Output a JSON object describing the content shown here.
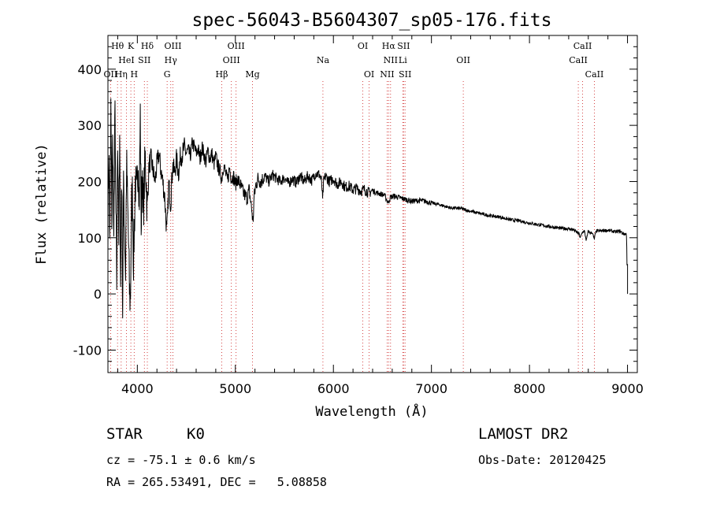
{
  "chart_data": {
    "type": "line",
    "title": "spec-56043-B5604307_sp05-176.fits",
    "xlabel": "Wavelength (Å)",
    "ylabel": "Flux (relative)",
    "xlim": [
      3700,
      9100
    ],
    "ylim": [
      -140,
      460
    ],
    "x_ticks": [
      "4000",
      "5000",
      "6000",
      "7000",
      "8000",
      "9000"
    ],
    "y_ticks": [
      "-100",
      "0",
      "100",
      "200",
      "300",
      "400"
    ],
    "grid": false,
    "series": [
      {
        "color": "#000000",
        "anchors": [
          [
            3700,
            130
          ],
          [
            3710,
            260
          ],
          [
            3720,
            80
          ],
          [
            3730,
            330
          ],
          [
            3740,
            120
          ],
          [
            3750,
            300
          ],
          [
            3760,
            60
          ],
          [
            3770,
            340
          ],
          [
            3780,
            150
          ],
          [
            3790,
            20
          ],
          [
            3800,
            300
          ],
          [
            3810,
            90
          ],
          [
            3820,
            260
          ],
          [
            3830,
            10
          ],
          [
            3840,
            240
          ],
          [
            3850,
            -30
          ],
          [
            3860,
            200
          ],
          [
            3870,
            110
          ],
          [
            3880,
            40
          ],
          [
            3890,
            230
          ],
          [
            3900,
            160
          ],
          [
            3910,
            90
          ],
          [
            3920,
            0
          ],
          [
            3930,
            -10
          ],
          [
            3940,
            150
          ],
          [
            3950,
            180
          ],
          [
            3960,
            60
          ],
          [
            3970,
            120
          ],
          [
            3980,
            210
          ],
          [
            3990,
            160
          ],
          [
            4000,
            200
          ],
          [
            4010,
            250
          ],
          [
            4020,
            160
          ],
          [
            4030,
            320
          ],
          [
            4040,
            110
          ],
          [
            4050,
            230
          ],
          [
            4060,
            140
          ],
          [
            4070,
            190
          ],
          [
            4080,
            240
          ],
          [
            4090,
            210
          ],
          [
            4100,
            150
          ],
          [
            4120,
            230
          ],
          [
            4140,
            240
          ],
          [
            4160,
            220
          ],
          [
            4180,
            200
          ],
          [
            4200,
            230
          ],
          [
            4220,
            250
          ],
          [
            4240,
            220
          ],
          [
            4260,
            200
          ],
          [
            4280,
            170
          ],
          [
            4300,
            110
          ],
          [
            4310,
            140
          ],
          [
            4320,
            200
          ],
          [
            4340,
            160
          ],
          [
            4360,
            230
          ],
          [
            4380,
            215
          ],
          [
            4400,
            240
          ],
          [
            4420,
            215
          ],
          [
            4440,
            245
          ],
          [
            4460,
            250
          ],
          [
            4480,
            260
          ],
          [
            4500,
            250
          ],
          [
            4520,
            255
          ],
          [
            4540,
            245
          ],
          [
            4560,
            268
          ],
          [
            4580,
            262
          ],
          [
            4600,
            250
          ],
          [
            4620,
            258
          ],
          [
            4640,
            240
          ],
          [
            4660,
            262
          ],
          [
            4680,
            248
          ],
          [
            4700,
            235
          ],
          [
            4720,
            255
          ],
          [
            4740,
            240
          ],
          [
            4760,
            250
          ],
          [
            4780,
            230
          ],
          [
            4800,
            245
          ],
          [
            4820,
            228
          ],
          [
            4840,
            220
          ],
          [
            4860,
            205
          ],
          [
            4880,
            230
          ],
          [
            4900,
            215
          ],
          [
            4920,
            200
          ],
          [
            4940,
            225
          ],
          [
            4960,
            205
          ],
          [
            4980,
            210
          ],
          [
            5000,
            195
          ],
          [
            5020,
            205
          ],
          [
            5040,
            198
          ],
          [
            5060,
            190
          ],
          [
            5080,
            180
          ],
          [
            5100,
            175
          ],
          [
            5120,
            170
          ],
          [
            5140,
            185
          ],
          [
            5160,
            160
          ],
          [
            5170,
            145
          ],
          [
            5180,
            125
          ],
          [
            5190,
            170
          ],
          [
            5210,
            195
          ],
          [
            5230,
            205
          ],
          [
            5260,
            200
          ],
          [
            5300,
            210
          ],
          [
            5340,
            200
          ],
          [
            5380,
            212
          ],
          [
            5420,
            205
          ],
          [
            5460,
            200
          ],
          [
            5500,
            208
          ],
          [
            5540,
            196
          ],
          [
            5580,
            205
          ],
          [
            5620,
            198
          ],
          [
            5660,
            210
          ],
          [
            5700,
            200
          ],
          [
            5740,
            210
          ],
          [
            5780,
            202
          ],
          [
            5820,
            215
          ],
          [
            5860,
            212
          ],
          [
            5880,
            200
          ],
          [
            5890,
            165
          ],
          [
            5900,
            200
          ],
          [
            5920,
            210
          ],
          [
            5960,
            200
          ],
          [
            6000,
            205
          ],
          [
            6040,
            195
          ],
          [
            6080,
            200
          ],
          [
            6120,
            190
          ],
          [
            6160,
            192
          ],
          [
            6200,
            185
          ],
          [
            6240,
            188
          ],
          [
            6280,
            183
          ],
          [
            6320,
            186
          ],
          [
            6360,
            180
          ],
          [
            6400,
            184
          ],
          [
            6440,
            180
          ],
          [
            6480,
            178
          ],
          [
            6520,
            176
          ],
          [
            6560,
            162
          ],
          [
            6580,
            172
          ],
          [
            6620,
            174
          ],
          [
            6660,
            172
          ],
          [
            6700,
            170
          ],
          [
            6740,
            168
          ],
          [
            6780,
            166
          ],
          [
            6800,
            165
          ],
          [
            6860,
            166
          ],
          [
            6900,
            166
          ],
          [
            6960,
            164
          ],
          [
            7000,
            162
          ],
          [
            7100,
            158
          ],
          [
            7200,
            153
          ],
          [
            7300,
            152
          ],
          [
            7400,
            147
          ],
          [
            7500,
            143
          ],
          [
            7600,
            139
          ],
          [
            7700,
            137
          ],
          [
            7800,
            132
          ],
          [
            7900,
            130
          ],
          [
            8000,
            126
          ],
          [
            8100,
            123
          ],
          [
            8200,
            120
          ],
          [
            8300,
            117
          ],
          [
            8400,
            116
          ],
          [
            8450,
            114
          ],
          [
            8480,
            110
          ],
          [
            8500,
            108
          ],
          [
            8520,
            100
          ],
          [
            8540,
            110
          ],
          [
            8560,
            112
          ],
          [
            8580,
            95
          ],
          [
            8600,
            112
          ],
          [
            8620,
            108
          ],
          [
            8640,
            110
          ],
          [
            8660,
            97
          ],
          [
            8680,
            112
          ],
          [
            8720,
            112
          ],
          [
            8760,
            113
          ],
          [
            8800,
            113
          ],
          [
            8840,
            112
          ],
          [
            8880,
            110
          ],
          [
            8920,
            112
          ],
          [
            8960,
            107
          ],
          [
            8990,
            106
          ],
          [
            9000,
            0
          ]
        ]
      }
    ],
    "lines": [
      {
        "label": "Hθ",
        "x": 3798,
        "row": 0
      },
      {
        "label": "K",
        "x": 3934,
        "row": 0
      },
      {
        "label": "Hδ",
        "x": 4102,
        "row": 0
      },
      {
        "label": "OIII",
        "x": 4363,
        "row": 0
      },
      {
        "label": "OIII",
        "x": 5007,
        "row": 0
      },
      {
        "label": "OI",
        "x": 6300,
        "row": 0
      },
      {
        "label": "Hα",
        "x": 6563,
        "row": 0
      },
      {
        "label": "SII",
        "x": 6716,
        "row": 0
      },
      {
        "label": "CaII",
        "x": 8542,
        "row": 0
      },
      {
        "label": "HeI",
        "x": 3889,
        "row": 1
      },
      {
        "label": "SII",
        "x": 4072,
        "row": 1
      },
      {
        "label": "Hγ",
        "x": 4341,
        "row": 1
      },
      {
        "label": "OIII",
        "x": 4959,
        "row": 1
      },
      {
        "label": "Na",
        "x": 5893,
        "row": 1
      },
      {
        "label": "NII",
        "x": 6583,
        "row": 1
      },
      {
        "label": "Li",
        "x": 6708,
        "row": 1
      },
      {
        "label": "OII",
        "x": 7325,
        "row": 1
      },
      {
        "label": "CaII",
        "x": 8498,
        "row": 1
      },
      {
        "label": "OII",
        "x": 3727,
        "row": 2
      },
      {
        "label": "Hη",
        "x": 3835,
        "row": 2
      },
      {
        "label": "H",
        "x": 3968,
        "row": 2
      },
      {
        "label": "G",
        "x": 4304,
        "row": 2
      },
      {
        "label": "Hβ",
        "x": 4861,
        "row": 2
      },
      {
        "label": "Mg",
        "x": 5175,
        "row": 2
      },
      {
        "label": "OI",
        "x": 6364,
        "row": 2
      },
      {
        "label": "NII",
        "x": 6548,
        "row": 2
      },
      {
        "label": "SII",
        "x": 6731,
        "row": 2
      },
      {
        "label": "CaII",
        "x": 8662,
        "row": 2
      }
    ]
  },
  "footer": {
    "class_label": "STAR",
    "subclass": "K0",
    "survey": "LAMOST DR2",
    "cz": "cz = -75.1 ± 0.6 km/s",
    "obs_date": "Obs-Date: 20120425",
    "coords": "RA = 265.53491, DEC =   5.08858"
  }
}
